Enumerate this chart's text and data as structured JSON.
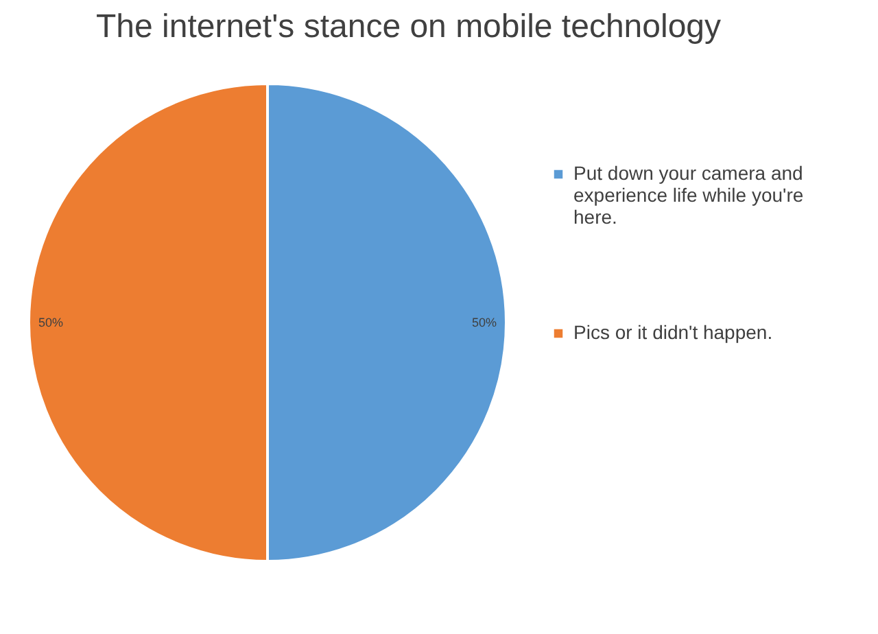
{
  "chart_data": {
    "type": "pie",
    "title": "The internet's stance on mobile technology",
    "categories": [
      "Put down your camera and experience life while you're here.",
      "Pics or it didn't happen."
    ],
    "values": [
      50,
      50
    ],
    "colors": [
      "#5b9bd5",
      "#ed7d31"
    ],
    "value_labels": [
      "50%",
      "50%"
    ],
    "legend": "right"
  }
}
